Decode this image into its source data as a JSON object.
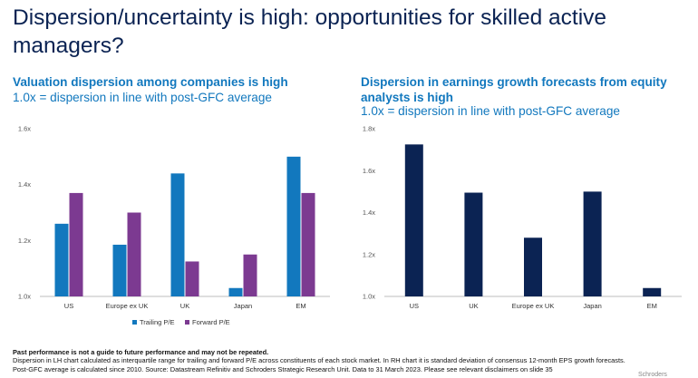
{
  "title": "Dispersion/uncertainty is high: opportunities for skilled active managers?",
  "left_heading": "Valuation dispersion among companies is high",
  "left_sub": "1.0x = dispersion in line with post-GFC average",
  "right_heading": "Dispersion in earnings growth forecasts from equity analysts is high",
  "right_sub": "1.0x = dispersion in line with post-GFC average",
  "footer": {
    "bold": "Past performance is not a guide to future performance and may not be repeated.",
    "line1": "Dispersion in LH chart calculated as interquartile range for trailing and forward P/E across constituents of each stock market. In RH chart it is standard deviation of consensus 12-month EPS growth forecasts.",
    "line2": "Post-GFC average is calculated since 2010. Source: Datastream Refinitiv and Schroders Strategic Research Unit. Data to 31 March 2023. Please see relevant disclaimers on slide 35",
    "partial": "Schroders"
  },
  "colors": {
    "navy": "#0b2353",
    "blue": "#1278be",
    "purple": "#7c3a91",
    "axis": "#bdbdbd"
  },
  "chart_data": [
    {
      "type": "bar",
      "categories": [
        "US",
        "Europe ex UK",
        "UK",
        "Japan",
        "EM"
      ],
      "series": [
        {
          "name": "Trailing P/E",
          "values": [
            1.26,
            1.185,
            1.44,
            1.03,
            1.5
          ]
        },
        {
          "name": "Forward P/E",
          "values": [
            1.37,
            1.3,
            1.125,
            1.15,
            1.37
          ]
        }
      ],
      "ylim": [
        1.0,
        1.6
      ],
      "yticks": [
        "1.0x",
        "1.2x",
        "1.4x",
        "1.6x"
      ],
      "legend_position": "bottom",
      "grid": false
    },
    {
      "type": "bar",
      "categories": [
        "US",
        "UK",
        "Europe ex UK",
        "Japan",
        "EM"
      ],
      "series": [
        {
          "values": [
            1.725,
            1.495,
            1.28,
            1.5,
            1.04
          ]
        }
      ],
      "ylim": [
        1.0,
        1.8
      ],
      "yticks": [
        "1.0x",
        "1.2x",
        "1.4x",
        "1.6x",
        "1.8x"
      ],
      "grid": false
    }
  ]
}
